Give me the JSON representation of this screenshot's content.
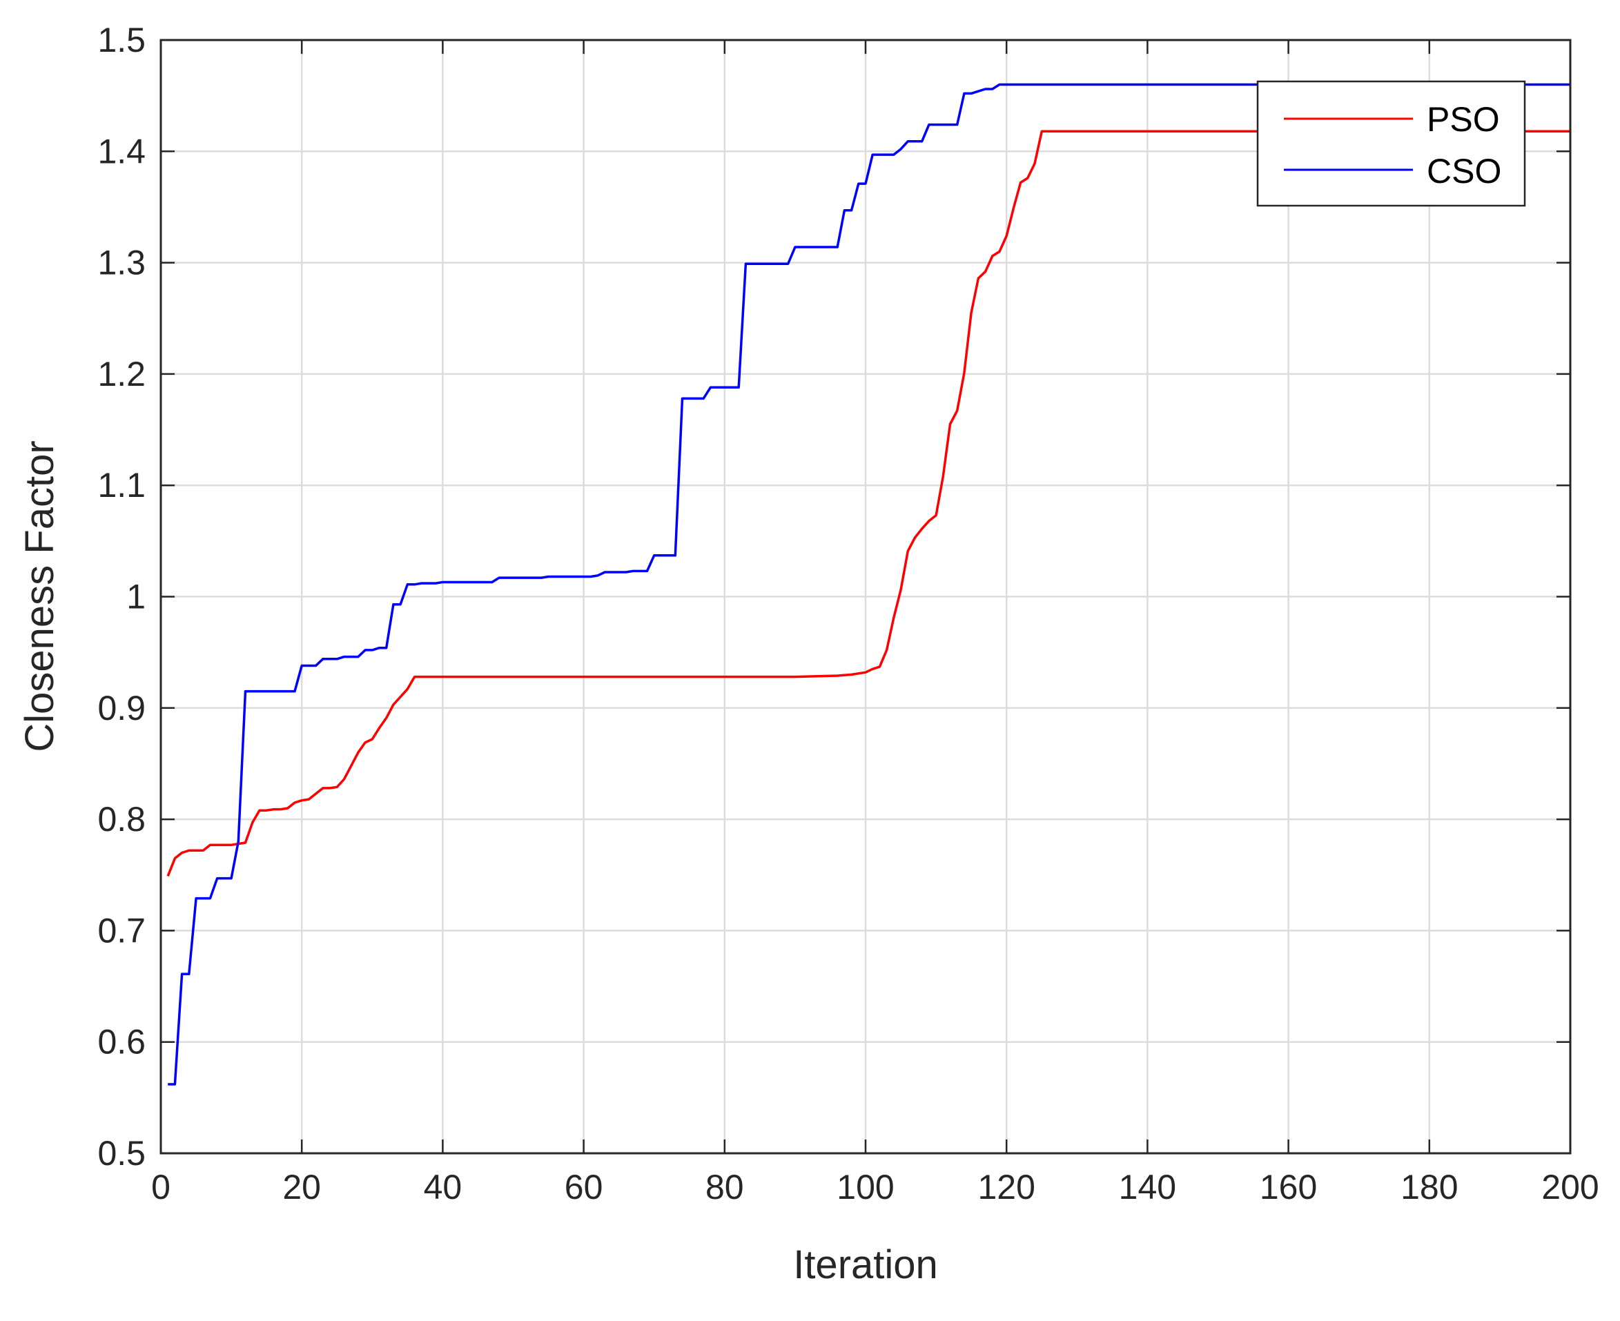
{
  "chart_data": {
    "type": "line",
    "xlabel": "Iteration",
    "ylabel": "Closeness Factor",
    "xlim": [
      0,
      200
    ],
    "ylim": [
      0.5,
      1.5
    ],
    "xticks": [
      0,
      20,
      40,
      60,
      80,
      100,
      120,
      140,
      160,
      180,
      200
    ],
    "yticks": [
      0.5,
      0.6,
      0.7,
      0.8,
      0.9,
      1,
      1.1,
      1.2,
      1.3,
      1.4,
      1.5
    ],
    "xtick_labels": [
      "0",
      "20",
      "40",
      "60",
      "80",
      "100",
      "120",
      "140",
      "160",
      "180",
      "200"
    ],
    "ytick_labels": [
      "0.5",
      "0.6",
      "0.7",
      "0.8",
      "0.9",
      "1",
      "1.1",
      "1.2",
      "1.3",
      "1.4",
      "1.5"
    ],
    "grid": true,
    "legend_position": "top-right",
    "series": [
      {
        "name": "PSO",
        "color": "#ff0000",
        "points": [
          [
            1,
            0.749
          ],
          [
            2,
            0.765
          ],
          [
            3,
            0.77
          ],
          [
            4,
            0.772
          ],
          [
            5,
            0.772
          ],
          [
            6,
            0.772
          ],
          [
            7,
            0.777
          ],
          [
            8,
            0.777
          ],
          [
            9,
            0.777
          ],
          [
            10,
            0.777
          ],
          [
            11,
            0.778
          ],
          [
            12,
            0.779
          ],
          [
            13,
            0.797
          ],
          [
            14,
            0.808
          ],
          [
            15,
            0.808
          ],
          [
            16,
            0.809
          ],
          [
            17,
            0.809
          ],
          [
            18,
            0.81
          ],
          [
            19,
            0.815
          ],
          [
            20,
            0.817
          ],
          [
            21,
            0.818
          ],
          [
            22,
            0.823
          ],
          [
            23,
            0.828
          ],
          [
            24,
            0.828
          ],
          [
            25,
            0.829
          ],
          [
            26,
            0.836
          ],
          [
            27,
            0.848
          ],
          [
            28,
            0.86
          ],
          [
            29,
            0.869
          ],
          [
            30,
            0.872
          ],
          [
            31,
            0.882
          ],
          [
            32,
            0.891
          ],
          [
            33,
            0.903
          ],
          [
            34,
            0.91
          ],
          [
            35,
            0.917
          ],
          [
            36,
            0.928
          ],
          [
            40,
            0.928
          ],
          [
            50,
            0.928
          ],
          [
            60,
            0.928
          ],
          [
            70,
            0.928
          ],
          [
            80,
            0.928
          ],
          [
            90,
            0.928
          ],
          [
            96,
            0.929
          ],
          [
            98,
            0.93
          ],
          [
            100,
            0.932
          ],
          [
            101,
            0.935
          ],
          [
            102,
            0.937
          ],
          [
            103,
            0.952
          ],
          [
            104,
            0.981
          ],
          [
            105,
            1.006
          ],
          [
            106,
            1.041
          ],
          [
            107,
            1.053
          ],
          [
            108,
            1.061
          ],
          [
            109,
            1.068
          ],
          [
            110,
            1.073
          ],
          [
            111,
            1.108
          ],
          [
            112,
            1.155
          ],
          [
            113,
            1.167
          ],
          [
            114,
            1.201
          ],
          [
            115,
            1.255
          ],
          [
            116,
            1.286
          ],
          [
            117,
            1.292
          ],
          [
            118,
            1.306
          ],
          [
            119,
            1.31
          ],
          [
            120,
            1.324
          ],
          [
            121,
            1.349
          ],
          [
            122,
            1.372
          ],
          [
            123,
            1.376
          ],
          [
            124,
            1.389
          ],
          [
            125,
            1.418
          ],
          [
            140,
            1.418
          ],
          [
            160,
            1.418
          ],
          [
            180,
            1.418
          ],
          [
            200,
            1.418
          ]
        ]
      },
      {
        "name": "CSO",
        "color": "#0000ff",
        "points": [
          [
            1,
            0.562
          ],
          [
            2,
            0.562
          ],
          [
            3,
            0.661
          ],
          [
            4,
            0.661
          ],
          [
            5,
            0.729
          ],
          [
            6,
            0.729
          ],
          [
            7,
            0.729
          ],
          [
            8,
            0.747
          ],
          [
            9,
            0.747
          ],
          [
            10,
            0.747
          ],
          [
            11,
            0.78
          ],
          [
            12,
            0.915
          ],
          [
            13,
            0.915
          ],
          [
            15,
            0.915
          ],
          [
            17,
            0.915
          ],
          [
            19,
            0.915
          ],
          [
            20,
            0.938
          ],
          [
            21,
            0.938
          ],
          [
            22,
            0.938
          ],
          [
            23,
            0.944
          ],
          [
            24,
            0.944
          ],
          [
            25,
            0.944
          ],
          [
            26,
            0.946
          ],
          [
            27,
            0.946
          ],
          [
            28,
            0.946
          ],
          [
            29,
            0.952
          ],
          [
            30,
            0.952
          ],
          [
            31,
            0.954
          ],
          [
            32,
            0.954
          ],
          [
            33,
            0.993
          ],
          [
            34,
            0.993
          ],
          [
            35,
            1.011
          ],
          [
            36,
            1.011
          ],
          [
            37,
            1.012
          ],
          [
            39,
            1.012
          ],
          [
            40,
            1.013
          ],
          [
            47,
            1.013
          ],
          [
            48,
            1.017
          ],
          [
            54,
            1.017
          ],
          [
            55,
            1.018
          ],
          [
            61,
            1.018
          ],
          [
            62,
            1.019
          ],
          [
            63,
            1.022
          ],
          [
            66,
            1.022
          ],
          [
            67,
            1.023
          ],
          [
            69,
            1.023
          ],
          [
            70,
            1.037
          ],
          [
            73,
            1.037
          ],
          [
            74,
            1.178
          ],
          [
            77,
            1.178
          ],
          [
            78,
            1.188
          ],
          [
            82,
            1.188
          ],
          [
            83,
            1.299
          ],
          [
            89,
            1.299
          ],
          [
            90,
            1.314
          ],
          [
            96,
            1.314
          ],
          [
            97,
            1.347
          ],
          [
            98,
            1.347
          ],
          [
            99,
            1.371
          ],
          [
            100,
            1.371
          ],
          [
            101,
            1.397
          ],
          [
            104,
            1.397
          ],
          [
            105,
            1.402
          ],
          [
            106,
            1.409
          ],
          [
            108,
            1.409
          ],
          [
            109,
            1.424
          ],
          [
            113,
            1.424
          ],
          [
            114,
            1.452
          ],
          [
            115,
            1.452
          ],
          [
            116,
            1.454
          ],
          [
            117,
            1.456
          ],
          [
            118,
            1.456
          ],
          [
            119,
            1.46
          ],
          [
            140,
            1.46
          ],
          [
            160,
            1.46
          ],
          [
            180,
            1.46
          ],
          [
            200,
            1.46
          ]
        ]
      }
    ]
  }
}
